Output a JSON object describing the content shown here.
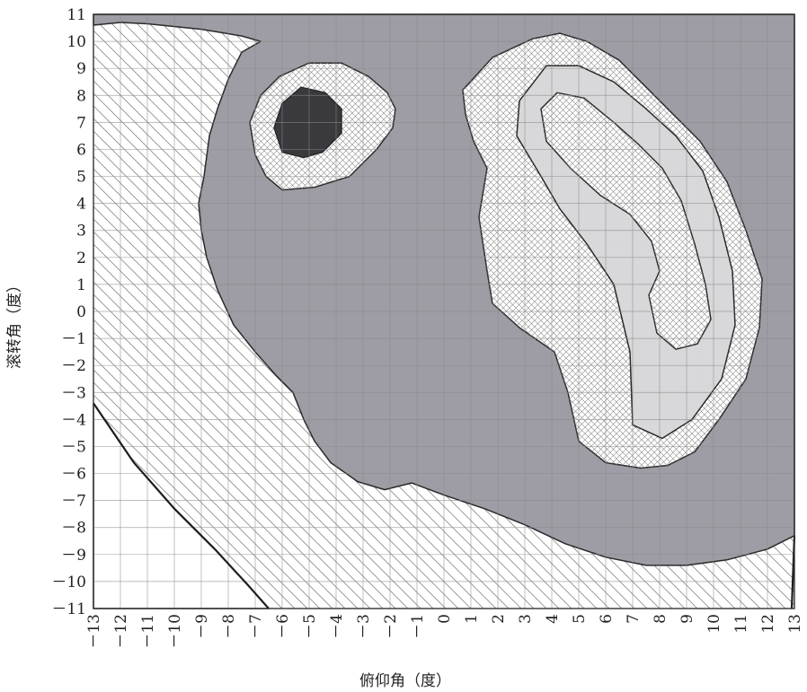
{
  "chart_data": {
    "type": "heatmap",
    "title": "",
    "xlabel": "俯仰角（度）",
    "ylabel": "滚转角（度）",
    "xlim": [
      -13,
      13
    ],
    "ylim": [
      -11,
      11
    ],
    "x_ticks": [
      "－13",
      "－12",
      "－11",
      "－10",
      "－9",
      "－8",
      "－7",
      "－6",
      "－5",
      "－4",
      "－3",
      "－2",
      "－1",
      "0",
      "1",
      "2",
      "3",
      "4",
      "5",
      "6",
      "7",
      "8",
      "9",
      "10",
      "11",
      "12",
      "13"
    ],
    "y_ticks": [
      "11",
      "10",
      "9",
      "8",
      "7",
      "6",
      "5",
      "4",
      "3",
      "2",
      "1",
      "0",
      "－1",
      "－2",
      "－3",
      "－4",
      "－5",
      "－6",
      "－7",
      "－8",
      "－9",
      "－10",
      "－11"
    ],
    "grid": true,
    "colors": {
      "region_medium": "#9e9ca4",
      "region_light": "#d8d8da",
      "region_dark": "#3a3a3e",
      "hatch": "#7a7a7a",
      "grid": "#8a8a8a",
      "background": "#ffffff"
    },
    "regions": [
      {
        "fill": "medium",
        "polygon": [
          [
            -13,
            10.6
          ],
          [
            -12,
            10.7
          ],
          [
            -11,
            10.65
          ],
          [
            -9,
            10.45
          ],
          [
            -7.5,
            10.2
          ],
          [
            -6.8,
            10.0
          ],
          [
            -7.5,
            9.6
          ],
          [
            -8.0,
            8.6
          ],
          [
            -8.4,
            7.5
          ],
          [
            -8.7,
            6.5
          ],
          [
            -8.9,
            5.0
          ],
          [
            -9.1,
            4.0
          ],
          [
            -9.0,
            3.0
          ],
          [
            -8.8,
            2.0
          ],
          [
            -8.4,
            0.8
          ],
          [
            -7.8,
            -0.5
          ],
          [
            -7.0,
            -1.5
          ],
          [
            -6.2,
            -2.4
          ],
          [
            -5.6,
            -3.0
          ],
          [
            -5.2,
            -4.0
          ],
          [
            -4.8,
            -4.8
          ],
          [
            -4.2,
            -5.6
          ],
          [
            -3.2,
            -6.3
          ],
          [
            -2.2,
            -6.6
          ],
          [
            -1.2,
            -6.35
          ],
          [
            0,
            -6.8
          ],
          [
            1.5,
            -7.3
          ],
          [
            3,
            -7.9
          ],
          [
            4.5,
            -8.6
          ],
          [
            6,
            -9.1
          ],
          [
            7.5,
            -9.4
          ],
          [
            9,
            -9.4
          ],
          [
            10.5,
            -9.2
          ],
          [
            12,
            -8.8
          ],
          [
            13,
            -8.3
          ],
          [
            13,
            11
          ],
          [
            -13,
            11
          ]
        ]
      },
      {
        "fill": "hatch-crosshatch",
        "polygon": [
          [
            -6.0,
            4.5
          ],
          [
            -4.8,
            4.6
          ],
          [
            -3.5,
            5.0
          ],
          [
            -2.5,
            6.0
          ],
          [
            -1.9,
            6.8
          ],
          [
            -1.8,
            7.5
          ],
          [
            -2.1,
            8.1
          ],
          [
            -2.8,
            8.7
          ],
          [
            -3.8,
            9.2
          ],
          [
            -5.0,
            9.2
          ],
          [
            -6.1,
            8.7
          ],
          [
            -6.8,
            8.0
          ],
          [
            -7.2,
            7.0
          ],
          [
            -7.0,
            5.8
          ],
          [
            -6.6,
            5.0
          ]
        ]
      },
      {
        "fill": "dark",
        "polygon": [
          [
            -5.2,
            5.7
          ],
          [
            -4.5,
            5.9
          ],
          [
            -3.8,
            6.6
          ],
          [
            -3.8,
            7.5
          ],
          [
            -4.4,
            8.1
          ],
          [
            -5.3,
            8.3
          ],
          [
            -6.0,
            7.7
          ],
          [
            -6.3,
            6.8
          ],
          [
            -6.0,
            5.9
          ]
        ]
      },
      {
        "fill": "hatch-crosshatch",
        "polygon": [
          [
            0.7,
            8.2
          ],
          [
            1.8,
            9.4
          ],
          [
            3.3,
            10.1
          ],
          [
            4.3,
            10.3
          ],
          [
            5.3,
            10.0
          ],
          [
            6.5,
            9.3
          ],
          [
            7.5,
            8.3
          ],
          [
            8.5,
            7.3
          ],
          [
            9.5,
            6.3
          ],
          [
            10.5,
            4.8
          ],
          [
            11.2,
            3.0
          ],
          [
            11.8,
            1.2
          ],
          [
            11.7,
            -0.6
          ],
          [
            11.2,
            -2.5
          ],
          [
            10.2,
            -4.0
          ],
          [
            9.3,
            -5.2
          ],
          [
            8.3,
            -5.7
          ],
          [
            7.3,
            -5.8
          ],
          [
            6.0,
            -5.6
          ],
          [
            5.0,
            -4.8
          ],
          [
            4.6,
            -3.0
          ],
          [
            4.1,
            -1.5
          ],
          [
            2.8,
            -0.6
          ],
          [
            1.8,
            0.3
          ],
          [
            1.6,
            1.5
          ],
          [
            1.3,
            3.5
          ],
          [
            1.6,
            5.3
          ],
          [
            1.1,
            6.3
          ],
          [
            0.8,
            7.3
          ]
        ]
      },
      {
        "fill": "light",
        "polygon": [
          [
            2.8,
            7.8
          ],
          [
            3.8,
            9.1
          ],
          [
            5.0,
            9.1
          ],
          [
            6.3,
            8.5
          ],
          [
            7.5,
            7.5
          ],
          [
            8.6,
            6.5
          ],
          [
            9.6,
            5.2
          ],
          [
            10.2,
            3.5
          ],
          [
            10.7,
            1.5
          ],
          [
            10.8,
            -0.5
          ],
          [
            10.3,
            -2.5
          ],
          [
            9.2,
            -4.0
          ],
          [
            8.1,
            -4.7
          ],
          [
            7.0,
            -4.2
          ],
          [
            6.9,
            -1.5
          ],
          [
            6.3,
            1.0
          ],
          [
            5.3,
            2.5
          ],
          [
            4.3,
            3.8
          ],
          [
            3.6,
            5.0
          ],
          [
            2.7,
            6.5
          ]
        ]
      },
      {
        "fill": "hatch-crosshatch",
        "polygon": [
          [
            3.6,
            7.5
          ],
          [
            4.2,
            8.1
          ],
          [
            5.2,
            7.9
          ],
          [
            6.3,
            7.0
          ],
          [
            7.2,
            6.2
          ],
          [
            8.1,
            5.3
          ],
          [
            8.8,
            4.1
          ],
          [
            9.3,
            2.5
          ],
          [
            9.7,
            1.0
          ],
          [
            9.9,
            -0.3
          ],
          [
            9.4,
            -1.2
          ],
          [
            8.6,
            -1.4
          ],
          [
            7.9,
            -0.8
          ],
          [
            7.6,
            0.6
          ],
          [
            8.0,
            1.5
          ],
          [
            7.7,
            2.6
          ],
          [
            6.9,
            3.6
          ],
          [
            5.8,
            4.3
          ],
          [
            4.7,
            5.3
          ],
          [
            3.8,
            6.3
          ]
        ]
      },
      {
        "fill": "white",
        "polygon": [
          [
            -13,
            -3.4
          ],
          [
            -11.5,
            -5.6
          ],
          [
            -10,
            -7.3
          ],
          [
            -8.5,
            -8.8
          ],
          [
            -7.3,
            -10.1
          ],
          [
            -6.5,
            -11
          ],
          [
            -13,
            -11
          ]
        ]
      }
    ],
    "boundary_lines": [
      [
        [
          -13,
          -3.4
        ],
        [
          -11.5,
          -5.6
        ],
        [
          -10,
          -7.3
        ],
        [
          -8.5,
          -8.8
        ],
        [
          -7.3,
          -10.1
        ],
        [
          -6.5,
          -11
        ]
      ],
      [
        [
          13,
          -8.3
        ],
        [
          12.9,
          -11
        ]
      ]
    ]
  }
}
